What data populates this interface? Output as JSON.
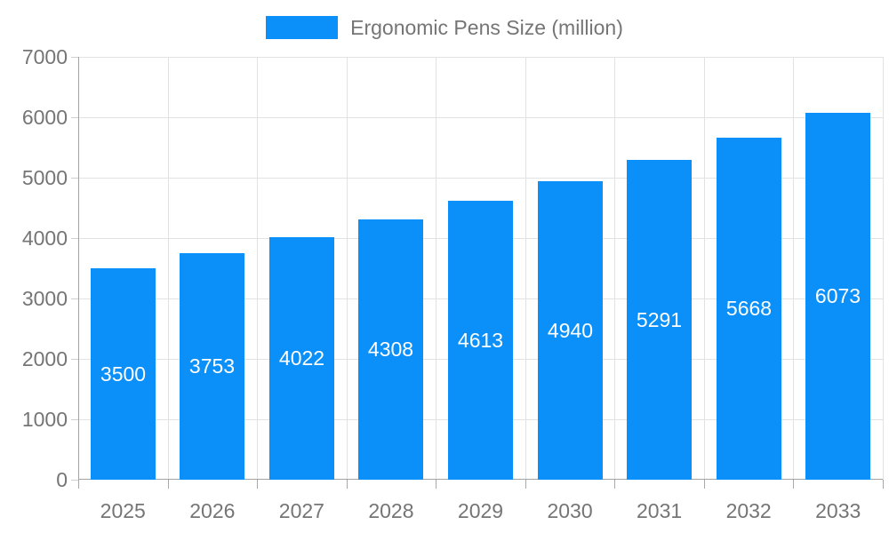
{
  "chart_data": {
    "type": "bar",
    "title": "Ergonomic Pens Size (million)",
    "categories": [
      "2025",
      "2026",
      "2027",
      "2028",
      "2029",
      "2030",
      "2031",
      "2032",
      "2033"
    ],
    "values": [
      3500,
      3753,
      4022,
      4308,
      4613,
      4940,
      5291,
      5668,
      6073
    ],
    "xlabel": "",
    "ylabel": "",
    "ylim": [
      0,
      7000
    ],
    "ytick_step": 1000,
    "ytick_labels": [
      "0",
      "1000",
      "2000",
      "3000",
      "4000",
      "5000",
      "6000",
      "7000"
    ],
    "grid": "on",
    "legend_position": "top-center",
    "bar_value_labels_inside": true
  },
  "colors": {
    "bar": "#0b8ff8",
    "bar_label": "#ffffff",
    "grid": "#e2e2e2",
    "axis": "#a3a3a3",
    "ytick": "#cfcfcf",
    "xtick": "#a8a8a8",
    "text": "#757575",
    "background": "#ffffff"
  }
}
